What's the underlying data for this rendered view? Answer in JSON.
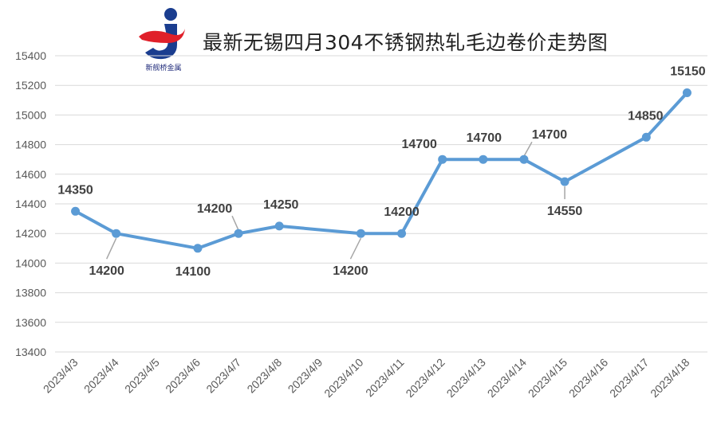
{
  "header": {
    "title": "最新无锡四月304不锈钢热轧毛边卷价走势图",
    "logo_text": "新舰桥金属"
  },
  "colors": {
    "line": "#5b9bd5",
    "grid": "#d9d9d9",
    "leader": "#a6a6a6",
    "logo_blue": "#1a3d8f",
    "logo_red": "#e0202a"
  },
  "chart_data": {
    "type": "line",
    "title": "最新无锡四月304不锈钢热轧毛边卷价走势图",
    "xlabel": "",
    "ylabel": "",
    "categories": [
      "2023/4/3",
      "2023/4/4",
      "2023/4/5",
      "2023/4/6",
      "2023/4/7",
      "2023/4/8",
      "2023/4/9",
      "2023/4/10",
      "2023/4/11",
      "2023/4/12",
      "2023/4/13",
      "2023/4/14",
      "2023/4/15",
      "2023/4/16",
      "2023/4/17",
      "2023/4/18"
    ],
    "series": [
      {
        "points": [
          {
            "x": "2023/4/3",
            "y": 14350
          },
          {
            "x": "2023/4/4",
            "y": 14200
          },
          {
            "x": "2023/4/6",
            "y": 14100
          },
          {
            "x": "2023/4/7",
            "y": 14200
          },
          {
            "x": "2023/4/8",
            "y": 14250
          },
          {
            "x": "2023/4/10",
            "y": 14200
          },
          {
            "x": "2023/4/11",
            "y": 14200
          },
          {
            "x": "2023/4/12",
            "y": 14700
          },
          {
            "x": "2023/4/13",
            "y": 14700
          },
          {
            "x": "2023/4/14",
            "y": 14700
          },
          {
            "x": "2023/4/15",
            "y": 14550
          },
          {
            "x": "2023/4/17",
            "y": 14850
          },
          {
            "x": "2023/4/18",
            "y": 15150
          }
        ]
      }
    ],
    "ylim": [
      13400,
      15400
    ],
    "yticks": [
      13400,
      13600,
      13800,
      14000,
      14200,
      14400,
      14600,
      14800,
      15000,
      15200,
      15400
    ],
    "grid": true,
    "legend": "none"
  }
}
